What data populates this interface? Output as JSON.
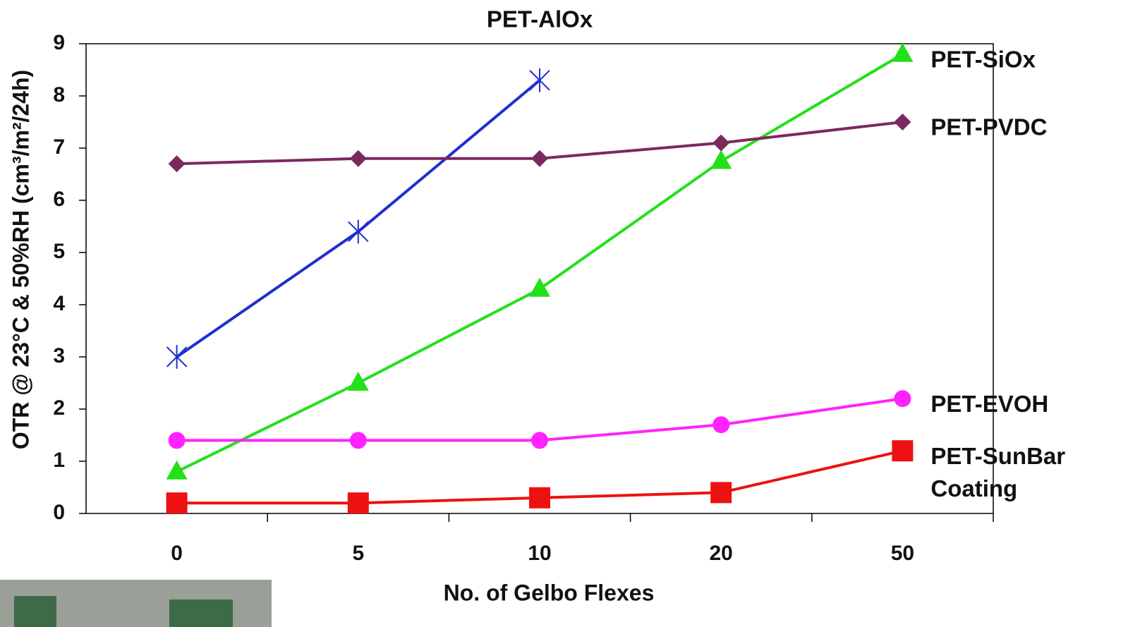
{
  "chart_data": {
    "type": "line",
    "x_label": "No. of Gelbo Flexes",
    "y_label": "OTR @ 23°C & 50%RH (cm³/m²/24h)",
    "categories": [
      "0",
      "5",
      "10",
      "20",
      "50"
    ],
    "ylim": [
      0,
      9
    ],
    "yticks": [
      0,
      1,
      2,
      3,
      4,
      5,
      6,
      7,
      8,
      9
    ],
    "series": [
      {
        "name": "PET-AlOx",
        "color": "#1f2fd0",
        "marker": "star",
        "values": [
          3.0,
          5.4,
          8.3,
          null,
          null
        ]
      },
      {
        "name": "PET-SiOx",
        "color": "#22e01a",
        "marker": "triangle",
        "values": [
          0.8,
          2.5,
          4.3,
          6.75,
          8.8
        ]
      },
      {
        "name": "PET-PVDC",
        "color": "#7b2a5e",
        "marker": "diamond",
        "values": [
          6.7,
          6.8,
          6.8,
          7.1,
          7.5
        ]
      },
      {
        "name": "PET-EVOH",
        "color": "#ff22ff",
        "marker": "circle",
        "values": [
          1.4,
          1.4,
          1.4,
          1.7,
          2.2
        ]
      },
      {
        "name": "PET-SunBar Coating",
        "color": "#ee1111",
        "marker": "square",
        "values": [
          0.2,
          0.2,
          0.3,
          0.4,
          1.2
        ]
      }
    ]
  }
}
